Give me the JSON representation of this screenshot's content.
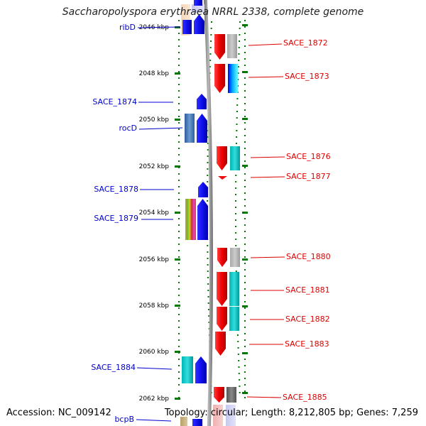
{
  "title": "Saccharopolyspora erythraea NRRL 2338, complete genome",
  "footer": {
    "accession": "Accession: NC_009142",
    "topology": "Topology: circular; Length: 8,212,805 bp; Genes: 7,259"
  },
  "colors": {
    "forward_cds": "#1010ee",
    "reverse_cds": "#ee1010",
    "left_label": "#0000cc",
    "right_label": "#dd0000",
    "backbone": "#8a8a8a",
    "tick_green": "#007700"
  },
  "ruler": {
    "unit": "kbp",
    "labels": [
      "2046 kbp",
      "2048 kbp",
      "2050 kbp",
      "2052 kbp",
      "2054 kbp",
      "2056 kbp",
      "2058 kbp",
      "2060 kbp",
      "2062 kbp"
    ]
  },
  "forward_genes": [
    {
      "name": "ribD"
    },
    {
      "name": "SACE_1874"
    },
    {
      "name": "rocD"
    },
    {
      "name": "SACE_1878"
    },
    {
      "name": "SACE_1879"
    },
    {
      "name": "SACE_1884"
    },
    {
      "name": "bcpB"
    }
  ],
  "reverse_genes": [
    {
      "name": "SACE_1872"
    },
    {
      "name": "SACE_1873"
    },
    {
      "name": "SACE_1876"
    },
    {
      "name": "SACE_1877"
    },
    {
      "name": "SACE_1880"
    },
    {
      "name": "SACE_1881"
    },
    {
      "name": "SACE_1882"
    },
    {
      "name": "SACE_1883"
    },
    {
      "name": "SACE_1885"
    }
  ]
}
